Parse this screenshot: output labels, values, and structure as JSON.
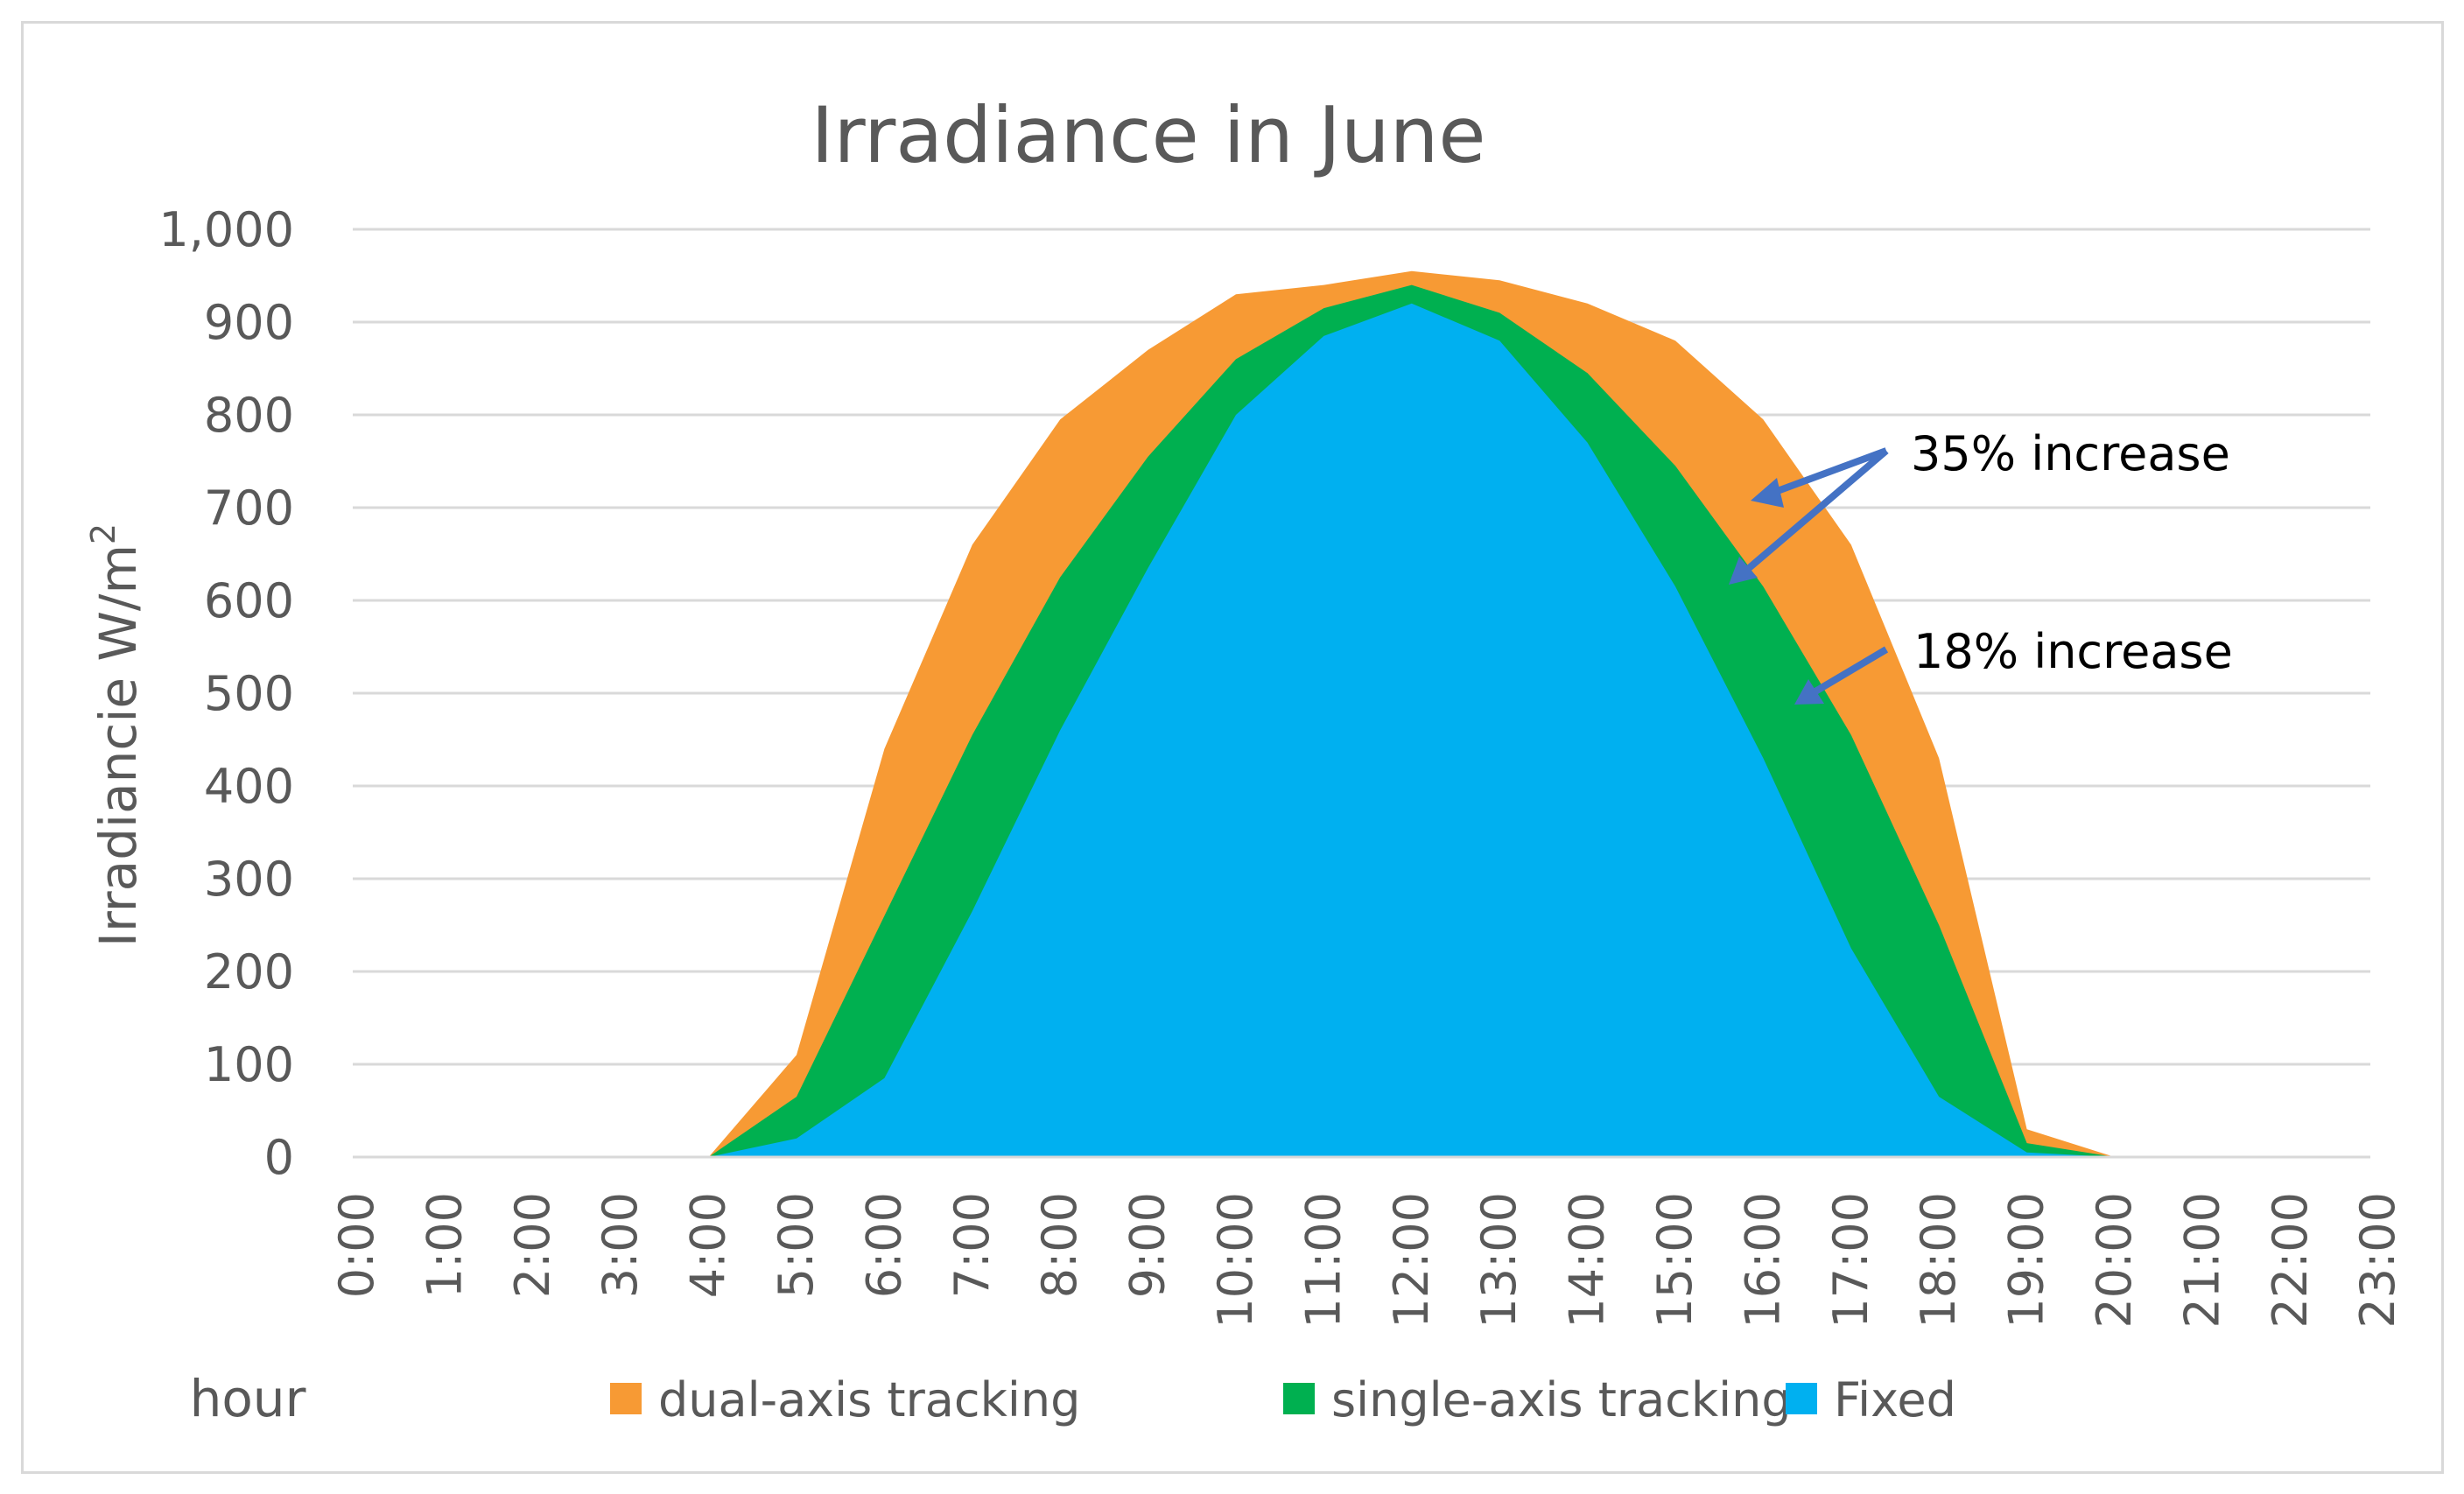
{
  "chart_data": {
    "type": "area",
    "title": "Irradiance in June",
    "xlabel": "hour",
    "ylabel": "Irradiancie W/m²",
    "ylabel_main": "Irradiancie W/m",
    "ylabel_sup": "2",
    "ylim": [
      0,
      1000
    ],
    "y_ticks": [
      0,
      100,
      200,
      300,
      400,
      500,
      600,
      700,
      800,
      900,
      1000
    ],
    "y_tick_labels": [
      "0",
      "100",
      "200",
      "300",
      "400",
      "500",
      "600",
      "700",
      "800",
      "900",
      "1,000"
    ],
    "grid": true,
    "categories": [
      "0:00",
      "1:00",
      "2:00",
      "3:00",
      "4:00",
      "5:00",
      "6:00",
      "7:00",
      "8:00",
      "9:00",
      "10:00",
      "11:00",
      "12:00",
      "13:00",
      "14:00",
      "15:00",
      "16:00",
      "17:00",
      "18:00",
      "19:00",
      "20:00",
      "21:00",
      "22:00",
      "23:00"
    ],
    "series": [
      {
        "name": "dual-axis tracking",
        "color": "#f79a34",
        "values": [
          0,
          0,
          0,
          0,
          0,
          110,
          440,
          660,
          795,
          870,
          930,
          940,
          955,
          945,
          920,
          880,
          795,
          660,
          430,
          30,
          0,
          0,
          0,
          0
        ]
      },
      {
        "name": "single-axis tracking",
        "color": "#00b050",
        "values": [
          0,
          0,
          0,
          0,
          0,
          65,
          260,
          455,
          625,
          755,
          860,
          915,
          940,
          910,
          845,
          745,
          615,
          455,
          250,
          15,
          0,
          0,
          0,
          0
        ]
      },
      {
        "name": "Fixed",
        "color": "#00b0f0",
        "values": [
          0,
          0,
          0,
          0,
          0,
          20,
          85,
          265,
          460,
          635,
          800,
          885,
          920,
          880,
          770,
          615,
          430,
          225,
          65,
          5,
          0,
          0,
          0,
          0
        ]
      }
    ],
    "legend_position": "bottom",
    "annotations": [
      {
        "text": "35% increase",
        "color": "#4472c4"
      },
      {
        "text": "18% increase",
        "color": "#4472c4"
      }
    ]
  }
}
